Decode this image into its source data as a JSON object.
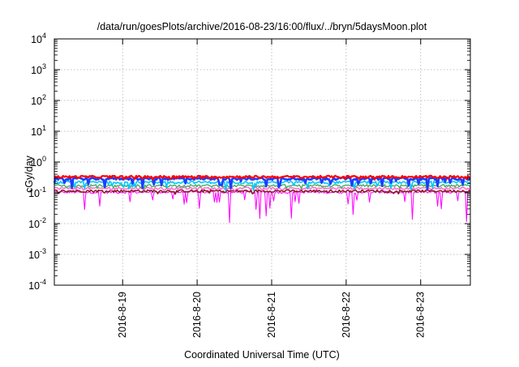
{
  "chart_data": {
    "type": "line",
    "title": "/data/run/goesPlots/archive/2016-08-23/16:00/flux/../bryn/5daysMoon.plot",
    "xlabel": "Coordinated Universal Time (UTC)",
    "ylabel": "cGy/day",
    "yscale": "log",
    "ylim": [
      0.0001,
      10000
    ],
    "xlim": [
      "2016-08-18T02:00",
      "2016-08-23T16:00"
    ],
    "grid": true,
    "legend": "none",
    "x_ticks": [
      {
        "label": "2016-8-19",
        "value": "2016-08-19"
      },
      {
        "label": "2016-8-20",
        "value": "2016-08-20"
      },
      {
        "label": "2016-8-21",
        "value": "2016-08-21"
      },
      {
        "label": "2016-8-22",
        "value": "2016-08-22"
      },
      {
        "label": "2016-8-23",
        "value": "2016-08-23"
      }
    ],
    "y_ticks": [
      {
        "base": "10",
        "exp": "-4",
        "value": 0.0001
      },
      {
        "base": "10",
        "exp": "-3",
        "value": 0.001
      },
      {
        "base": "10",
        "exp": "-2",
        "value": 0.01
      },
      {
        "base": "10",
        "exp": "-1",
        "value": 0.1
      },
      {
        "base": "10",
        "exp": "0",
        "value": 1
      },
      {
        "base": "10",
        "exp": "1",
        "value": 10
      },
      {
        "base": "10",
        "exp": "2",
        "value": 100
      },
      {
        "base": "10",
        "exp": "3",
        "value": 1000
      },
      {
        "base": "10",
        "exp": "4",
        "value": 10000
      }
    ],
    "series": [
      {
        "color": "#ff0000",
        "level": 0.33,
        "dip_depth": 0.15,
        "dip_rate": 0.05,
        "width": 2.2
      },
      {
        "color": "#1e3cff",
        "level": 0.29,
        "dip_depth": 0.55,
        "dip_rate": 0.12,
        "width": 2.6
      },
      {
        "color": "#00c8ff",
        "level": 0.22,
        "dip_depth": 0.45,
        "dip_rate": 0.1,
        "width": 1.6
      },
      {
        "color": "#40b060",
        "level": 0.17,
        "dip_depth": 0.2,
        "dip_rate": 0.06,
        "width": 1.4
      },
      {
        "color": "#ff66cc",
        "level": 0.14,
        "dip_depth": 0.18,
        "dip_rate": 0.05,
        "width": 1.4
      },
      {
        "color": "#8b1a2a",
        "level": 0.115,
        "dip_depth": 0.15,
        "dip_rate": 0.05,
        "width": 1.6
      },
      {
        "color": "#ff00ff",
        "level": 0.105,
        "dip_depth": 0.9,
        "dip_rate": 0.1,
        "width": 1.0
      }
    ]
  }
}
